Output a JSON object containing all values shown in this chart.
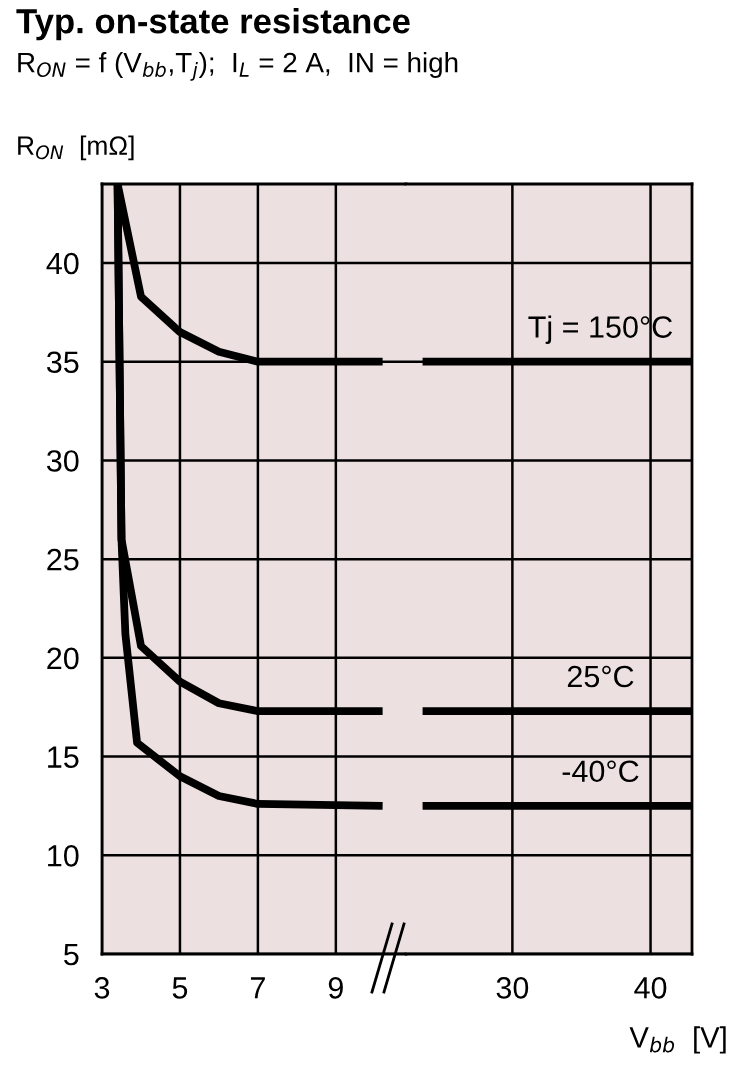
{
  "chart_data": [
    {
      "type": "line",
      "title": "Typ. on-state resistance",
      "subtitle": "R$_{ON}$ = f (V$_{bb}$,T$_{j}$);  I$_{L}$ = 2 A,  IN = high",
      "ylabel": "R$_{ON}$  [mΩ]",
      "xlim": [
        3,
        10.8
      ],
      "xticks": [
        3,
        5,
        7,
        9
      ],
      "ylim": [
        5,
        44
      ],
      "yticks": [
        5,
        10,
        15,
        20,
        25,
        30,
        35,
        40
      ],
      "grid": true,
      "legend": false,
      "series": [
        {
          "color": "#000000",
          "x": [
            3.4,
            4.0,
            5,
            6,
            7,
            10.2
          ],
          "values": [
            44,
            38.3,
            36.5,
            35.5,
            35,
            35
          ]
        },
        {
          "color": "#000000",
          "x": [
            3.4,
            3.5,
            4.0,
            5,
            6,
            7,
            10.2
          ],
          "values": [
            44,
            26,
            20.6,
            18.8,
            17.7,
            17.3,
            17.3
          ]
        },
        {
          "color": "#000000",
          "x": [
            3.4,
            3.5,
            3.6,
            3.9,
            5,
            6,
            7,
            10.2
          ],
          "values": [
            44,
            26,
            21.2,
            15.7,
            14,
            13,
            12.6,
            12.5
          ]
        }
      ]
    },
    {
      "type": "line",
      "xlabel": "V$_{bb}$  [V]",
      "xlim": [
        22.3,
        43
      ],
      "xticks": [
        30,
        40
      ],
      "ylim": [
        5,
        44
      ],
      "yticks": [
        5,
        10,
        15,
        20,
        25,
        30,
        35,
        40
      ],
      "grid": true,
      "legend": false,
      "tick_labels": "x",
      "series": [
        {
          "name": "Tj = 150°C",
          "color": "#000000",
          "x": [
            23.5,
            43
          ],
          "values": [
            35,
            35
          ]
        },
        {
          "name": "25°C",
          "color": "#000000",
          "x": [
            23.5,
            43
          ],
          "values": [
            17.3,
            17.3
          ]
        },
        {
          "name": "-40°C",
          "color": "#000000",
          "x": [
            23.5,
            43
          ],
          "values": [
            12.5,
            12.5
          ]
        }
      ]
    }
  ]
}
